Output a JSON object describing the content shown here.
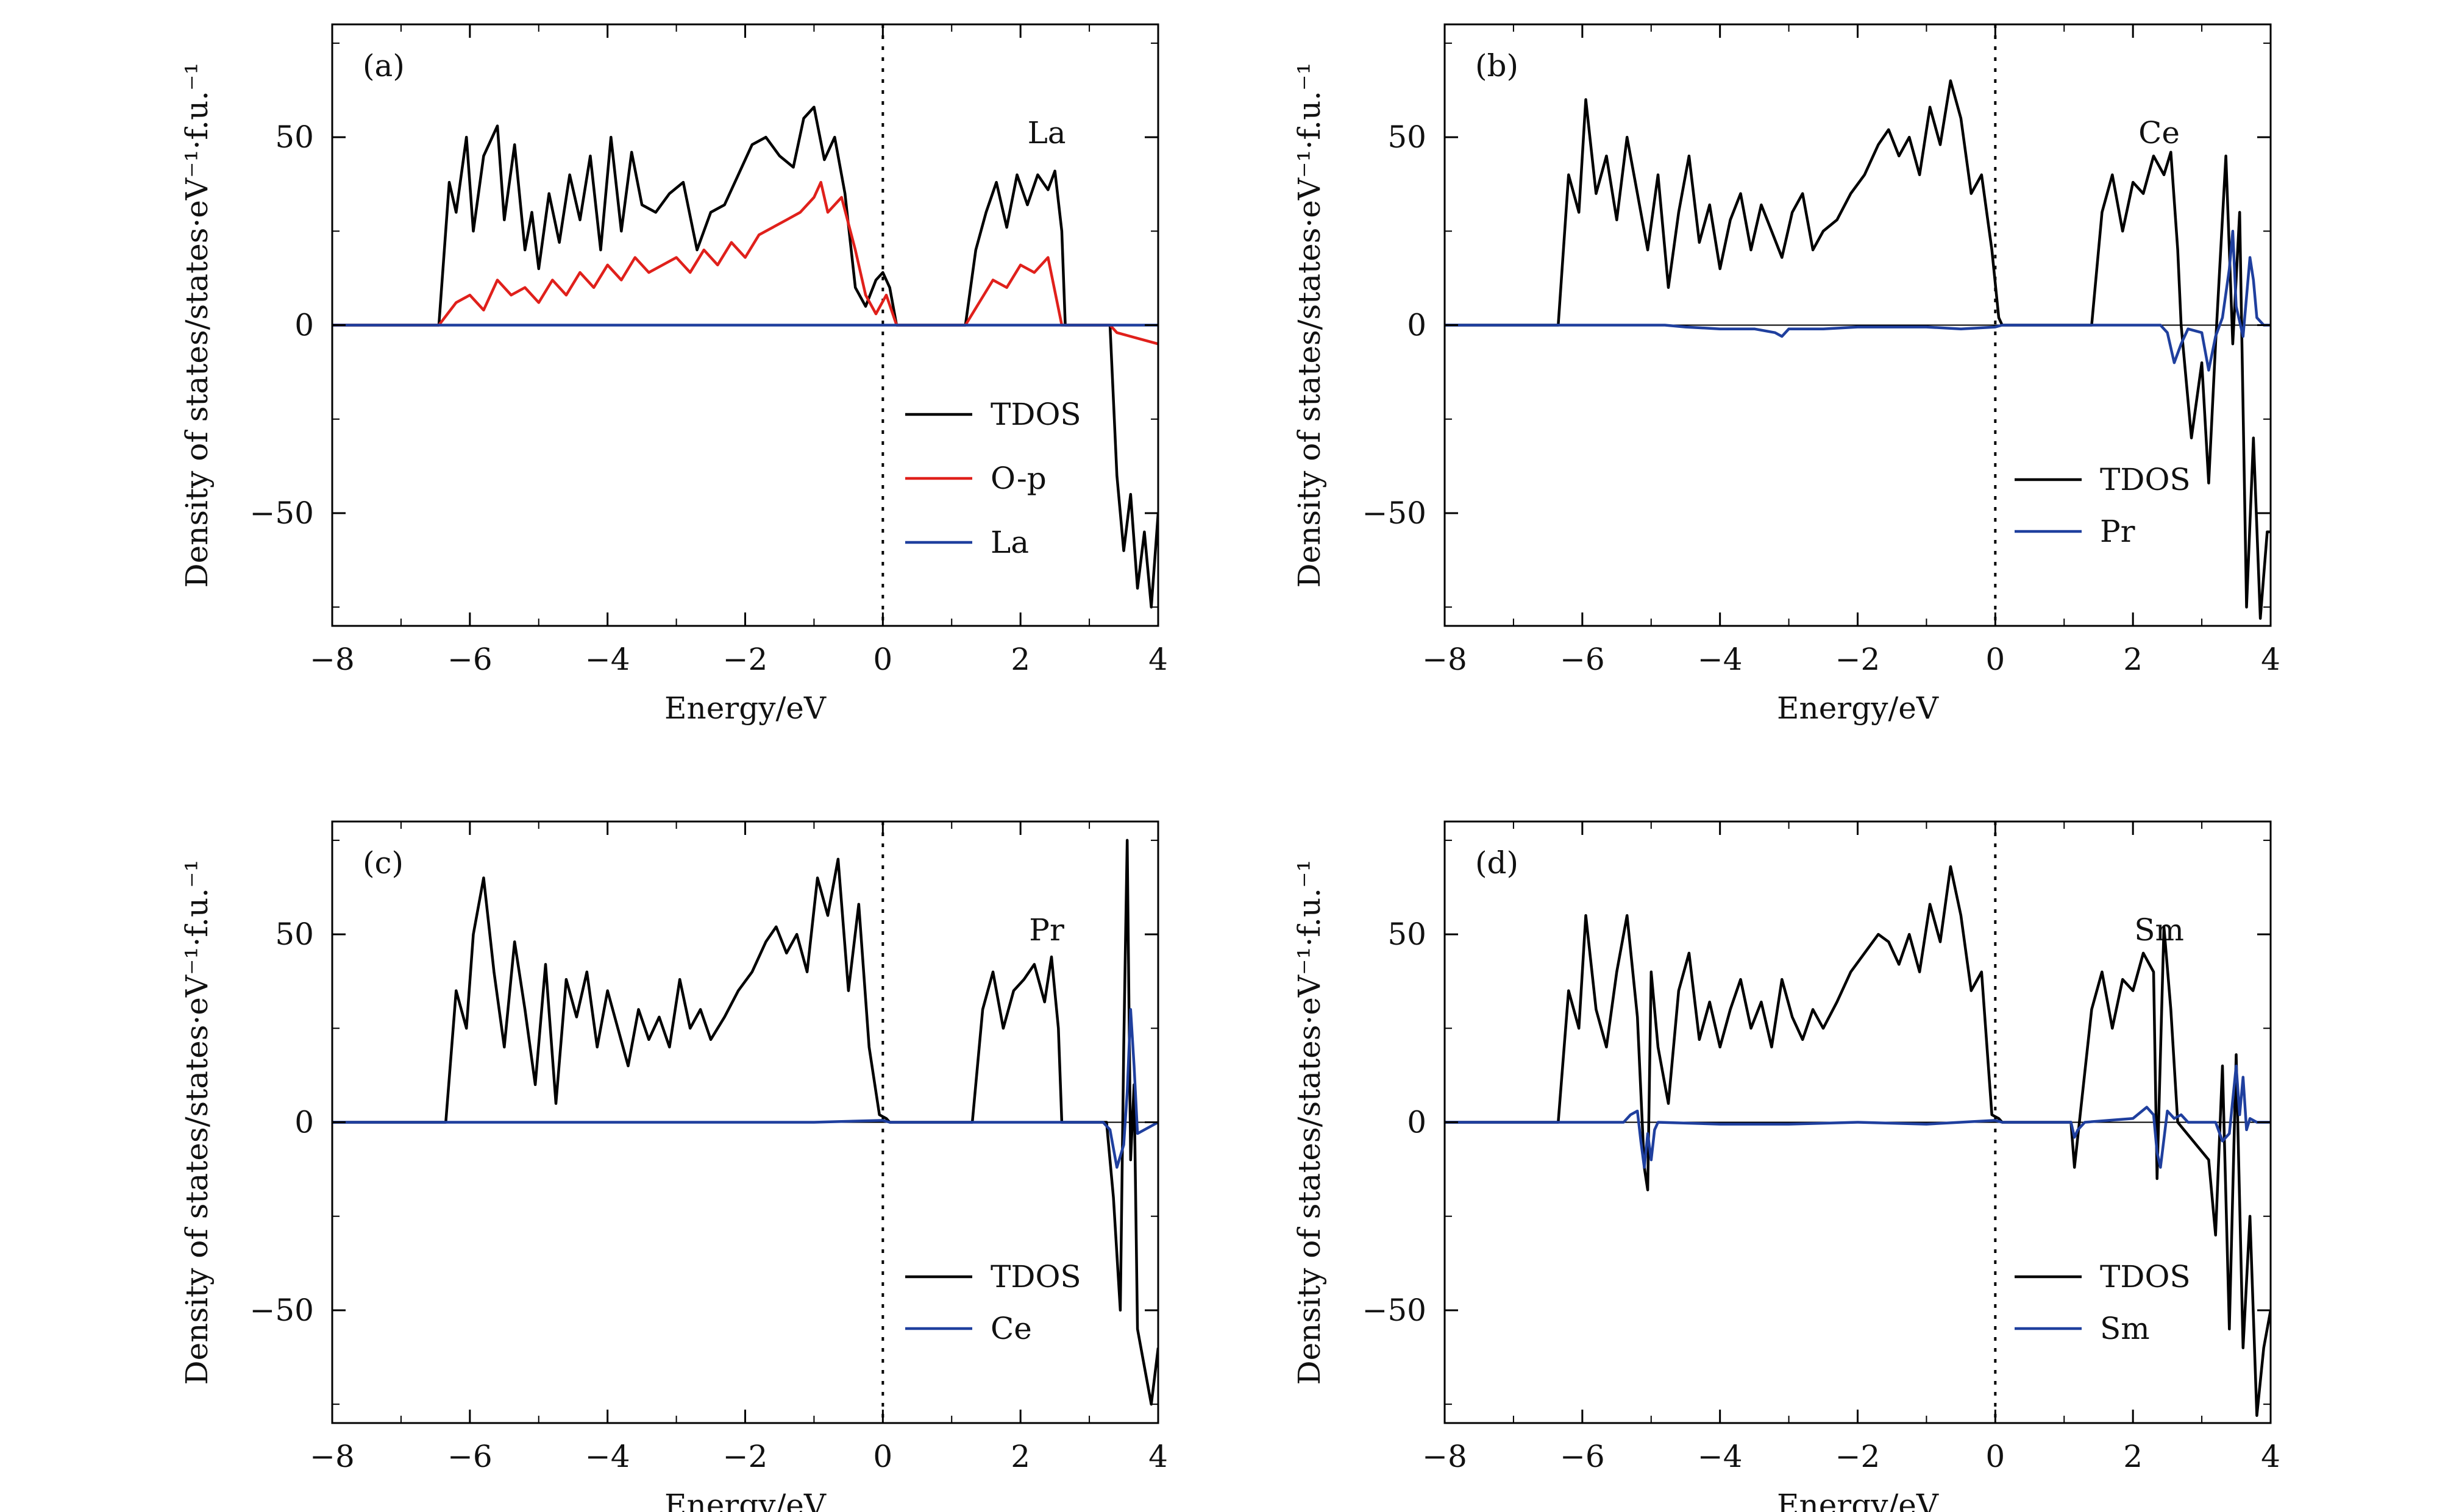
{
  "figure": {
    "y_label": "Density of states/states·eV⁻¹·f.u.⁻¹",
    "x_label": "Energy/eV"
  },
  "chart_data": [
    {
      "type": "line",
      "panel": "(a)",
      "title": "La",
      "xlabel": "Energy/eV",
      "ylabel": "Density of states/states·eV⁻¹·f.u.⁻¹",
      "xlim": [
        -8,
        4
      ],
      "ylim": [
        -80,
        80
      ],
      "xticks": [
        -8,
        -6,
        -4,
        -2,
        0,
        2,
        4
      ],
      "yticks": [
        -50,
        0,
        50
      ],
      "legend_position": "lower-right",
      "series": [
        {
          "name": "TDOS",
          "color": "#000000",
          "x": [
            -8,
            -6.45,
            -6.3,
            -6.2,
            -6.05,
            -5.95,
            -5.8,
            -5.6,
            -5.5,
            -5.35,
            -5.2,
            -5.1,
            -5.0,
            -4.85,
            -4.7,
            -4.55,
            -4.4,
            -4.25,
            -4.1,
            -3.95,
            -3.8,
            -3.65,
            -3.5,
            -3.3,
            -3.1,
            -2.9,
            -2.7,
            -2.5,
            -2.3,
            -2.1,
            -1.9,
            -1.7,
            -1.5,
            -1.3,
            -1.15,
            -1.0,
            -0.85,
            -0.7,
            -0.55,
            -0.4,
            -0.25,
            -0.1,
            0.0,
            0.1,
            0.2,
            1.2,
            1.35,
            1.5,
            1.65,
            1.8,
            1.95,
            2.1,
            2.25,
            2.4,
            2.5,
            2.6,
            2.65,
            3.3,
            3.4,
            3.5,
            3.6,
            3.7,
            3.8,
            3.9,
            4.0
          ],
          "y": [
            0,
            0,
            38,
            30,
            50,
            25,
            45,
            53,
            28,
            48,
            20,
            30,
            15,
            35,
            22,
            40,
            28,
            45,
            20,
            50,
            25,
            46,
            32,
            30,
            35,
            38,
            20,
            30,
            32,
            40,
            48,
            50,
            45,
            42,
            55,
            58,
            44,
            50,
            35,
            10,
            5,
            12,
            14,
            10,
            0,
            0,
            20,
            30,
            38,
            26,
            40,
            32,
            40,
            36,
            41,
            25,
            0,
            0,
            -40,
            -60,
            -45,
            -70,
            -55,
            -75,
            -50
          ]
        },
        {
          "name": "O-p",
          "color": "#e0201b",
          "x": [
            -8,
            -6.45,
            -6.2,
            -6.0,
            -5.8,
            -5.6,
            -5.4,
            -5.2,
            -5.0,
            -4.8,
            -4.6,
            -4.4,
            -4.2,
            -4.0,
            -3.8,
            -3.6,
            -3.4,
            -3.2,
            -3.0,
            -2.8,
            -2.6,
            -2.4,
            -2.2,
            -2.0,
            -1.8,
            -1.6,
            -1.4,
            -1.2,
            -1.0,
            -0.9,
            -0.8,
            -0.6,
            -0.4,
            -0.25,
            -0.1,
            0.05,
            0.2,
            1.2,
            1.4,
            1.6,
            1.8,
            2.0,
            2.2,
            2.4,
            2.6,
            3.3,
            3.4,
            3.6,
            3.8,
            4.0
          ],
          "y": [
            0,
            0,
            6,
            8,
            4,
            12,
            8,
            10,
            6,
            12,
            8,
            14,
            10,
            16,
            12,
            18,
            14,
            16,
            18,
            14,
            20,
            16,
            22,
            18,
            24,
            26,
            28,
            30,
            34,
            38,
            30,
            34,
            20,
            8,
            3,
            8,
            0,
            0,
            6,
            12,
            10,
            16,
            14,
            18,
            0,
            0,
            -2,
            -3,
            -4,
            -5
          ]
        },
        {
          "name": "La",
          "color": "#1f3f9e",
          "x": [
            -8,
            4
          ],
          "y": [
            0,
            0
          ]
        }
      ]
    },
    {
      "type": "line",
      "panel": "(b)",
      "title": "Ce",
      "xlabel": "Energy/eV",
      "ylabel": "Density of states/states·eV⁻¹·f.u.⁻¹",
      "xlim": [
        -8,
        4
      ],
      "ylim": [
        -80,
        80
      ],
      "xticks": [
        -8,
        -6,
        -4,
        -2,
        0,
        2,
        4
      ],
      "yticks": [
        -50,
        0,
        50
      ],
      "legend_position": "lower-right",
      "series": [
        {
          "name": "TDOS",
          "color": "#000000",
          "x": [
            -8,
            -6.35,
            -6.2,
            -6.05,
            -5.95,
            -5.8,
            -5.65,
            -5.5,
            -5.35,
            -5.2,
            -5.05,
            -4.9,
            -4.75,
            -4.6,
            -4.45,
            -4.3,
            -4.15,
            -4.0,
            -3.85,
            -3.7,
            -3.55,
            -3.4,
            -3.25,
            -3.1,
            -2.95,
            -2.8,
            -2.65,
            -2.5,
            -2.3,
            -2.1,
            -1.9,
            -1.7,
            -1.55,
            -1.4,
            -1.25,
            -1.1,
            -0.95,
            -0.8,
            -0.65,
            -0.5,
            -0.35,
            -0.2,
            -0.05,
            0.05,
            0.1,
            1.4,
            1.55,
            1.7,
            1.85,
            2.0,
            2.15,
            2.3,
            2.45,
            2.55,
            2.65,
            2.7,
            2.85,
            3.0,
            3.1,
            3.2,
            3.35,
            3.45,
            3.55,
            3.65,
            3.75,
            3.85,
            3.95,
            4.0
          ],
          "y": [
            0,
            0,
            40,
            30,
            60,
            35,
            45,
            28,
            50,
            35,
            20,
            40,
            10,
            30,
            45,
            22,
            32,
            15,
            28,
            35,
            20,
            32,
            25,
            18,
            30,
            35,
            20,
            25,
            28,
            35,
            40,
            48,
            52,
            45,
            50,
            40,
            58,
            48,
            65,
            55,
            35,
            40,
            20,
            2,
            0,
            0,
            30,
            40,
            25,
            38,
            35,
            45,
            40,
            46,
            20,
            0,
            -30,
            -10,
            -42,
            -5,
            45,
            -5,
            30,
            -75,
            -30,
            -78,
            -55,
            -55
          ]
        },
        {
          "name": "Pr",
          "color": "#1f3f9e",
          "x": [
            -8,
            -4.8,
            -4.5,
            -4.0,
            -3.5,
            -3.2,
            -3.1,
            -3.0,
            -2.5,
            -2.0,
            -1.5,
            -1.0,
            -0.5,
            0.0,
            0.1,
            2.4,
            2.5,
            2.6,
            2.7,
            2.8,
            3.0,
            3.1,
            3.2,
            3.3,
            3.4,
            3.45,
            3.5,
            3.6,
            3.7,
            3.75,
            3.8,
            3.9,
            4.0
          ],
          "y": [
            0,
            0,
            -0.5,
            -1,
            -1,
            -2,
            -3,
            -1,
            -1,
            -0.5,
            -0.5,
            -0.5,
            -1,
            -0.5,
            0,
            0,
            -2,
            -10,
            -5,
            -1,
            -2,
            -12,
            -3,
            2,
            15,
            25,
            5,
            -3,
            18,
            12,
            2,
            0,
            0
          ]
        }
      ]
    },
    {
      "type": "line",
      "panel": "(c)",
      "title": "Pr",
      "xlabel": "Energy/eV",
      "ylabel": "Density of states/states·eV⁻¹·f.u.⁻¹",
      "xlim": [
        -8,
        4
      ],
      "ylim": [
        -80,
        80
      ],
      "xticks": [
        -8,
        -6,
        -4,
        -2,
        0,
        2,
        4
      ],
      "yticks": [
        -50,
        0,
        50
      ],
      "legend_position": "lower-right",
      "series": [
        {
          "name": "TDOS",
          "color": "#000000",
          "x": [
            -8,
            -6.35,
            -6.2,
            -6.05,
            -5.95,
            -5.8,
            -5.65,
            -5.5,
            -5.35,
            -5.2,
            -5.05,
            -4.9,
            -4.75,
            -4.6,
            -4.45,
            -4.3,
            -4.15,
            -4.0,
            -3.85,
            -3.7,
            -3.55,
            -3.4,
            -3.25,
            -3.1,
            -2.95,
            -2.8,
            -2.65,
            -2.5,
            -2.3,
            -2.1,
            -1.9,
            -1.7,
            -1.55,
            -1.4,
            -1.25,
            -1.1,
            -0.95,
            -0.8,
            -0.65,
            -0.5,
            -0.35,
            -0.2,
            -0.05,
            0.05,
            0.1,
            1.3,
            1.45,
            1.6,
            1.75,
            1.9,
            2.05,
            2.2,
            2.35,
            2.45,
            2.55,
            2.6,
            3.25,
            3.35,
            3.45,
            3.5,
            3.55,
            3.6,
            3.65,
            3.7,
            3.8,
            3.9,
            4.0
          ],
          "y": [
            0,
            0,
            35,
            25,
            50,
            65,
            40,
            20,
            48,
            30,
            10,
            42,
            5,
            38,
            28,
            40,
            20,
            35,
            25,
            15,
            30,
            22,
            28,
            20,
            38,
            25,
            30,
            22,
            28,
            35,
            40,
            48,
            52,
            45,
            50,
            40,
            65,
            55,
            70,
            35,
            58,
            20,
            2,
            1,
            0,
            0,
            30,
            40,
            25,
            35,
            38,
            42,
            32,
            44,
            25,
            0,
            0,
            -20,
            -50,
            20,
            75,
            -10,
            10,
            -55,
            -65,
            -75,
            -60
          ]
        },
        {
          "name": "Ce",
          "color": "#1f3f9e",
          "x": [
            -8,
            -1.0,
            0.0,
            0.1,
            3.2,
            3.3,
            3.4,
            3.5,
            3.55,
            3.6,
            3.65,
            3.7,
            3.8,
            4.0
          ],
          "y": [
            0,
            0,
            0.5,
            0,
            0,
            -2,
            -12,
            -6,
            8,
            30,
            15,
            -3,
            -2,
            0
          ]
        }
      ]
    },
    {
      "type": "line",
      "panel": "(d)",
      "title": "Sm",
      "xlabel": "Energy/eV",
      "ylabel": "Density of states/states·eV⁻¹·f.u.⁻¹",
      "xlim": [
        -8,
        4
      ],
      "ylim": [
        -80,
        80
      ],
      "xticks": [
        -8,
        -6,
        -4,
        -2,
        0,
        2,
        4
      ],
      "yticks": [
        -50,
        0,
        50
      ],
      "legend_position": "lower-right",
      "series": [
        {
          "name": "TDOS",
          "color": "#000000",
          "x": [
            -8,
            -6.35,
            -6.2,
            -6.05,
            -5.95,
            -5.8,
            -5.65,
            -5.5,
            -5.35,
            -5.2,
            -5.1,
            -5.05,
            -5.0,
            -4.9,
            -4.75,
            -4.6,
            -4.45,
            -4.3,
            -4.15,
            -4.0,
            -3.85,
            -3.7,
            -3.55,
            -3.4,
            -3.25,
            -3.1,
            -2.95,
            -2.8,
            -2.65,
            -2.5,
            -2.3,
            -2.1,
            -1.9,
            -1.7,
            -1.55,
            -1.4,
            -1.25,
            -1.1,
            -0.95,
            -0.8,
            -0.65,
            -0.5,
            -0.35,
            -0.2,
            -0.05,
            0.05,
            0.1,
            1.1,
            1.15,
            1.4,
            1.55,
            1.7,
            1.85,
            2.0,
            2.15,
            2.3,
            2.35,
            2.45,
            2.55,
            2.65,
            3.1,
            3.2,
            3.3,
            3.4,
            3.5,
            3.6,
            3.7,
            3.8,
            3.9,
            4.0
          ],
          "y": [
            0,
            0,
            35,
            25,
            55,
            30,
            20,
            40,
            55,
            28,
            -12,
            -18,
            40,
            20,
            5,
            35,
            45,
            22,
            32,
            20,
            30,
            38,
            25,
            32,
            20,
            38,
            28,
            22,
            30,
            25,
            32,
            40,
            45,
            50,
            48,
            42,
            50,
            40,
            58,
            48,
            68,
            55,
            35,
            40,
            2,
            1,
            0,
            0,
            -12,
            30,
            40,
            25,
            38,
            35,
            45,
            40,
            -15,
            52,
            30,
            0,
            -10,
            -30,
            15,
            -55,
            18,
            -60,
            -25,
            -78,
            -60,
            -50
          ]
        },
        {
          "name": "Sm",
          "color": "#1f3f9e",
          "x": [
            -8,
            -5.4,
            -5.3,
            -5.2,
            -5.15,
            -5.1,
            -5.05,
            -5.0,
            -4.95,
            -4.9,
            -4.0,
            -3.0,
            -2.0,
            -1.0,
            0.0,
            0.1,
            1.1,
            1.15,
            1.2,
            1.3,
            2.0,
            2.2,
            2.3,
            2.35,
            2.4,
            2.5,
            2.6,
            2.7,
            2.8,
            3.2,
            3.3,
            3.4,
            3.5,
            3.55,
            3.6,
            3.65,
            3.7,
            3.8,
            4.0
          ],
          "y": [
            0,
            0,
            2,
            3,
            -5,
            -12,
            -3,
            -10,
            -2,
            0,
            -0.5,
            -0.5,
            0,
            -0.5,
            0.5,
            0,
            0,
            -4,
            -2,
            0,
            1,
            4,
            2,
            -8,
            -12,
            3,
            1,
            2,
            0,
            0,
            -5,
            -3,
            15,
            2,
            12,
            -2,
            1,
            0,
            0
          ]
        }
      ]
    }
  ]
}
